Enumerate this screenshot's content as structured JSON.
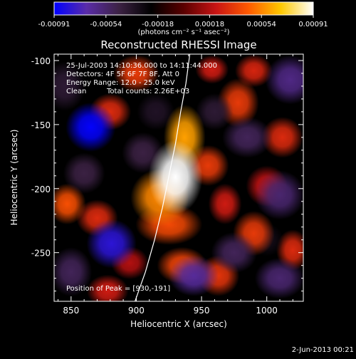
{
  "colorbar": {
    "tick_labels": [
      "-0.00091",
      "-0.00054",
      "-0.00018",
      "0.00018",
      "0.00054",
      "0.00091"
    ],
    "unit_label": "(photons cm⁻² s⁻¹ asec⁻²)",
    "range": [
      -0.00091,
      0.00091
    ],
    "colors": [
      "#0000ff",
      "#5a2ca8",
      "#3c2244",
      "#000000",
      "#5a0000",
      "#c81414",
      "#ff5a00",
      "#ffc800",
      "#ffffff"
    ]
  },
  "header": {
    "title": "Reconstructed RHESSI Image"
  },
  "annotations": {
    "line1": "25-Jul-2003 14:10:36.000 to 14:11:44.000",
    "line2": "Detectors: 4F 5F 6F 7F 8F, Att 0",
    "line3": "Energy Range: 12.0 - 25.0 keV",
    "line4_left": "Clean",
    "line4_right": "Total counts: 2.26E+03",
    "peak": "Position of Peak = [930,-191]"
  },
  "footer": {
    "date": "2-Jun-2013 00:21"
  },
  "chart_data": {
    "type": "heatmap",
    "title": "Reconstructed RHESSI Image",
    "xlabel": "Heliocentric X (arcsec)",
    "ylabel": "Heliocentric Y (arcsec)",
    "xlim": [
      837,
      1028
    ],
    "ylim": [
      -288,
      -95
    ],
    "x_ticks": [
      850,
      900,
      950,
      1000
    ],
    "y_ticks": [
      -100,
      -150,
      -200,
      -250
    ],
    "x_tick_labels": [
      "850",
      "900",
      "950",
      "1000"
    ],
    "y_tick_labels": [
      "-100",
      "-150",
      "-200",
      "-250"
    ],
    "peak_position": [
      930,
      -191
    ],
    "blobs": [
      {
        "x": 930,
        "y": -191,
        "rx": 13,
        "ry": 18,
        "v": 0.00091
      },
      {
        "x": 937,
        "y": -160,
        "rx": 10,
        "ry": 16,
        "v": 0.0006
      },
      {
        "x": 918,
        "y": -207,
        "rx": 14,
        "ry": 14,
        "v": 0.00055
      },
      {
        "x": 925,
        "y": -228,
        "rx": 16,
        "ry": 10,
        "v": 0.0004
      },
      {
        "x": 955,
        "y": -182,
        "rx": 10,
        "ry": 10,
        "v": 0.00035
      },
      {
        "x": 900,
        "y": -110,
        "rx": 11,
        "ry": 9,
        "v": 0.00035
      },
      {
        "x": 880,
        "y": -140,
        "rx": 10,
        "ry": 9,
        "v": 0.0003
      },
      {
        "x": 847,
        "y": -212,
        "rx": 9,
        "ry": 10,
        "v": 0.00042
      },
      {
        "x": 870,
        "y": -223,
        "rx": 10,
        "ry": 9,
        "v": 0.0003
      },
      {
        "x": 935,
        "y": -260,
        "rx": 12,
        "ry": 9,
        "v": 0.00038
      },
      {
        "x": 963,
        "y": -268,
        "rx": 10,
        "ry": 10,
        "v": 0.00033
      },
      {
        "x": 978,
        "y": -133,
        "rx": 10,
        "ry": 12,
        "v": 0.00035
      },
      {
        "x": 990,
        "y": -108,
        "rx": 9,
        "ry": 8,
        "v": 0.00028
      },
      {
        "x": 1012,
        "y": -160,
        "rx": 10,
        "ry": 10,
        "v": 0.0003
      },
      {
        "x": 990,
        "y": -235,
        "rx": 10,
        "ry": 11,
        "v": 0.00035
      },
      {
        "x": 1020,
        "y": -248,
        "rx": 8,
        "ry": 10,
        "v": 0.0003
      },
      {
        "x": 1000,
        "y": -198,
        "rx": 10,
        "ry": 10,
        "v": 0.00022
      },
      {
        "x": 968,
        "y": -212,
        "rx": 8,
        "ry": 10,
        "v": 0.00025
      },
      {
        "x": 895,
        "y": -258,
        "rx": 9,
        "ry": 8,
        "v": 0.00018
      },
      {
        "x": 878,
        "y": -280,
        "rx": 10,
        "ry": 8,
        "v": 0.00025
      },
      {
        "x": 958,
        "y": -107,
        "rx": 8,
        "ry": 7,
        "v": 0.00025
      },
      {
        "x": 865,
        "y": -152,
        "rx": 12,
        "ry": 12,
        "v": -0.0009
      },
      {
        "x": 881,
        "y": -243,
        "rx": 12,
        "ry": 12,
        "v": -0.0008
      },
      {
        "x": 944,
        "y": -268,
        "rx": 12,
        "ry": 10,
        "v": -0.00065
      },
      {
        "x": 1018,
        "y": -115,
        "rx": 12,
        "ry": 12,
        "v": -0.0006
      },
      {
        "x": 905,
        "y": -172,
        "rx": 10,
        "ry": 10,
        "v": -0.00045
      },
      {
        "x": 860,
        "y": -188,
        "rx": 10,
        "ry": 10,
        "v": -0.00045
      },
      {
        "x": 985,
        "y": -160,
        "rx": 12,
        "ry": 10,
        "v": -0.0005
      },
      {
        "x": 1010,
        "y": -205,
        "rx": 12,
        "ry": 12,
        "v": -0.00055
      },
      {
        "x": 975,
        "y": -250,
        "rx": 11,
        "ry": 10,
        "v": -0.0005
      },
      {
        "x": 1010,
        "y": -270,
        "rx": 12,
        "ry": 10,
        "v": -0.00055
      },
      {
        "x": 850,
        "y": -265,
        "rx": 10,
        "ry": 12,
        "v": -0.0005
      },
      {
        "x": 845,
        "y": -120,
        "rx": 10,
        "ry": 12,
        "v": -0.0004
      },
      {
        "x": 915,
        "y": -140,
        "rx": 9,
        "ry": 9,
        "v": -0.00035
      },
      {
        "x": 960,
        "y": -140,
        "rx": 9,
        "ry": 9,
        "v": -0.0004
      },
      {
        "x": 1000,
        "y": -240,
        "rx": 8,
        "ry": 8,
        "v": -0.0003
      }
    ],
    "limb_curve": [
      [
        899,
        -288
      ],
      [
        907,
        -265
      ],
      [
        914,
        -240
      ],
      [
        920,
        -215
      ],
      [
        925,
        -190
      ],
      [
        930,
        -165
      ],
      [
        934,
        -140
      ],
      [
        938,
        -118
      ],
      [
        941,
        -95
      ]
    ]
  }
}
